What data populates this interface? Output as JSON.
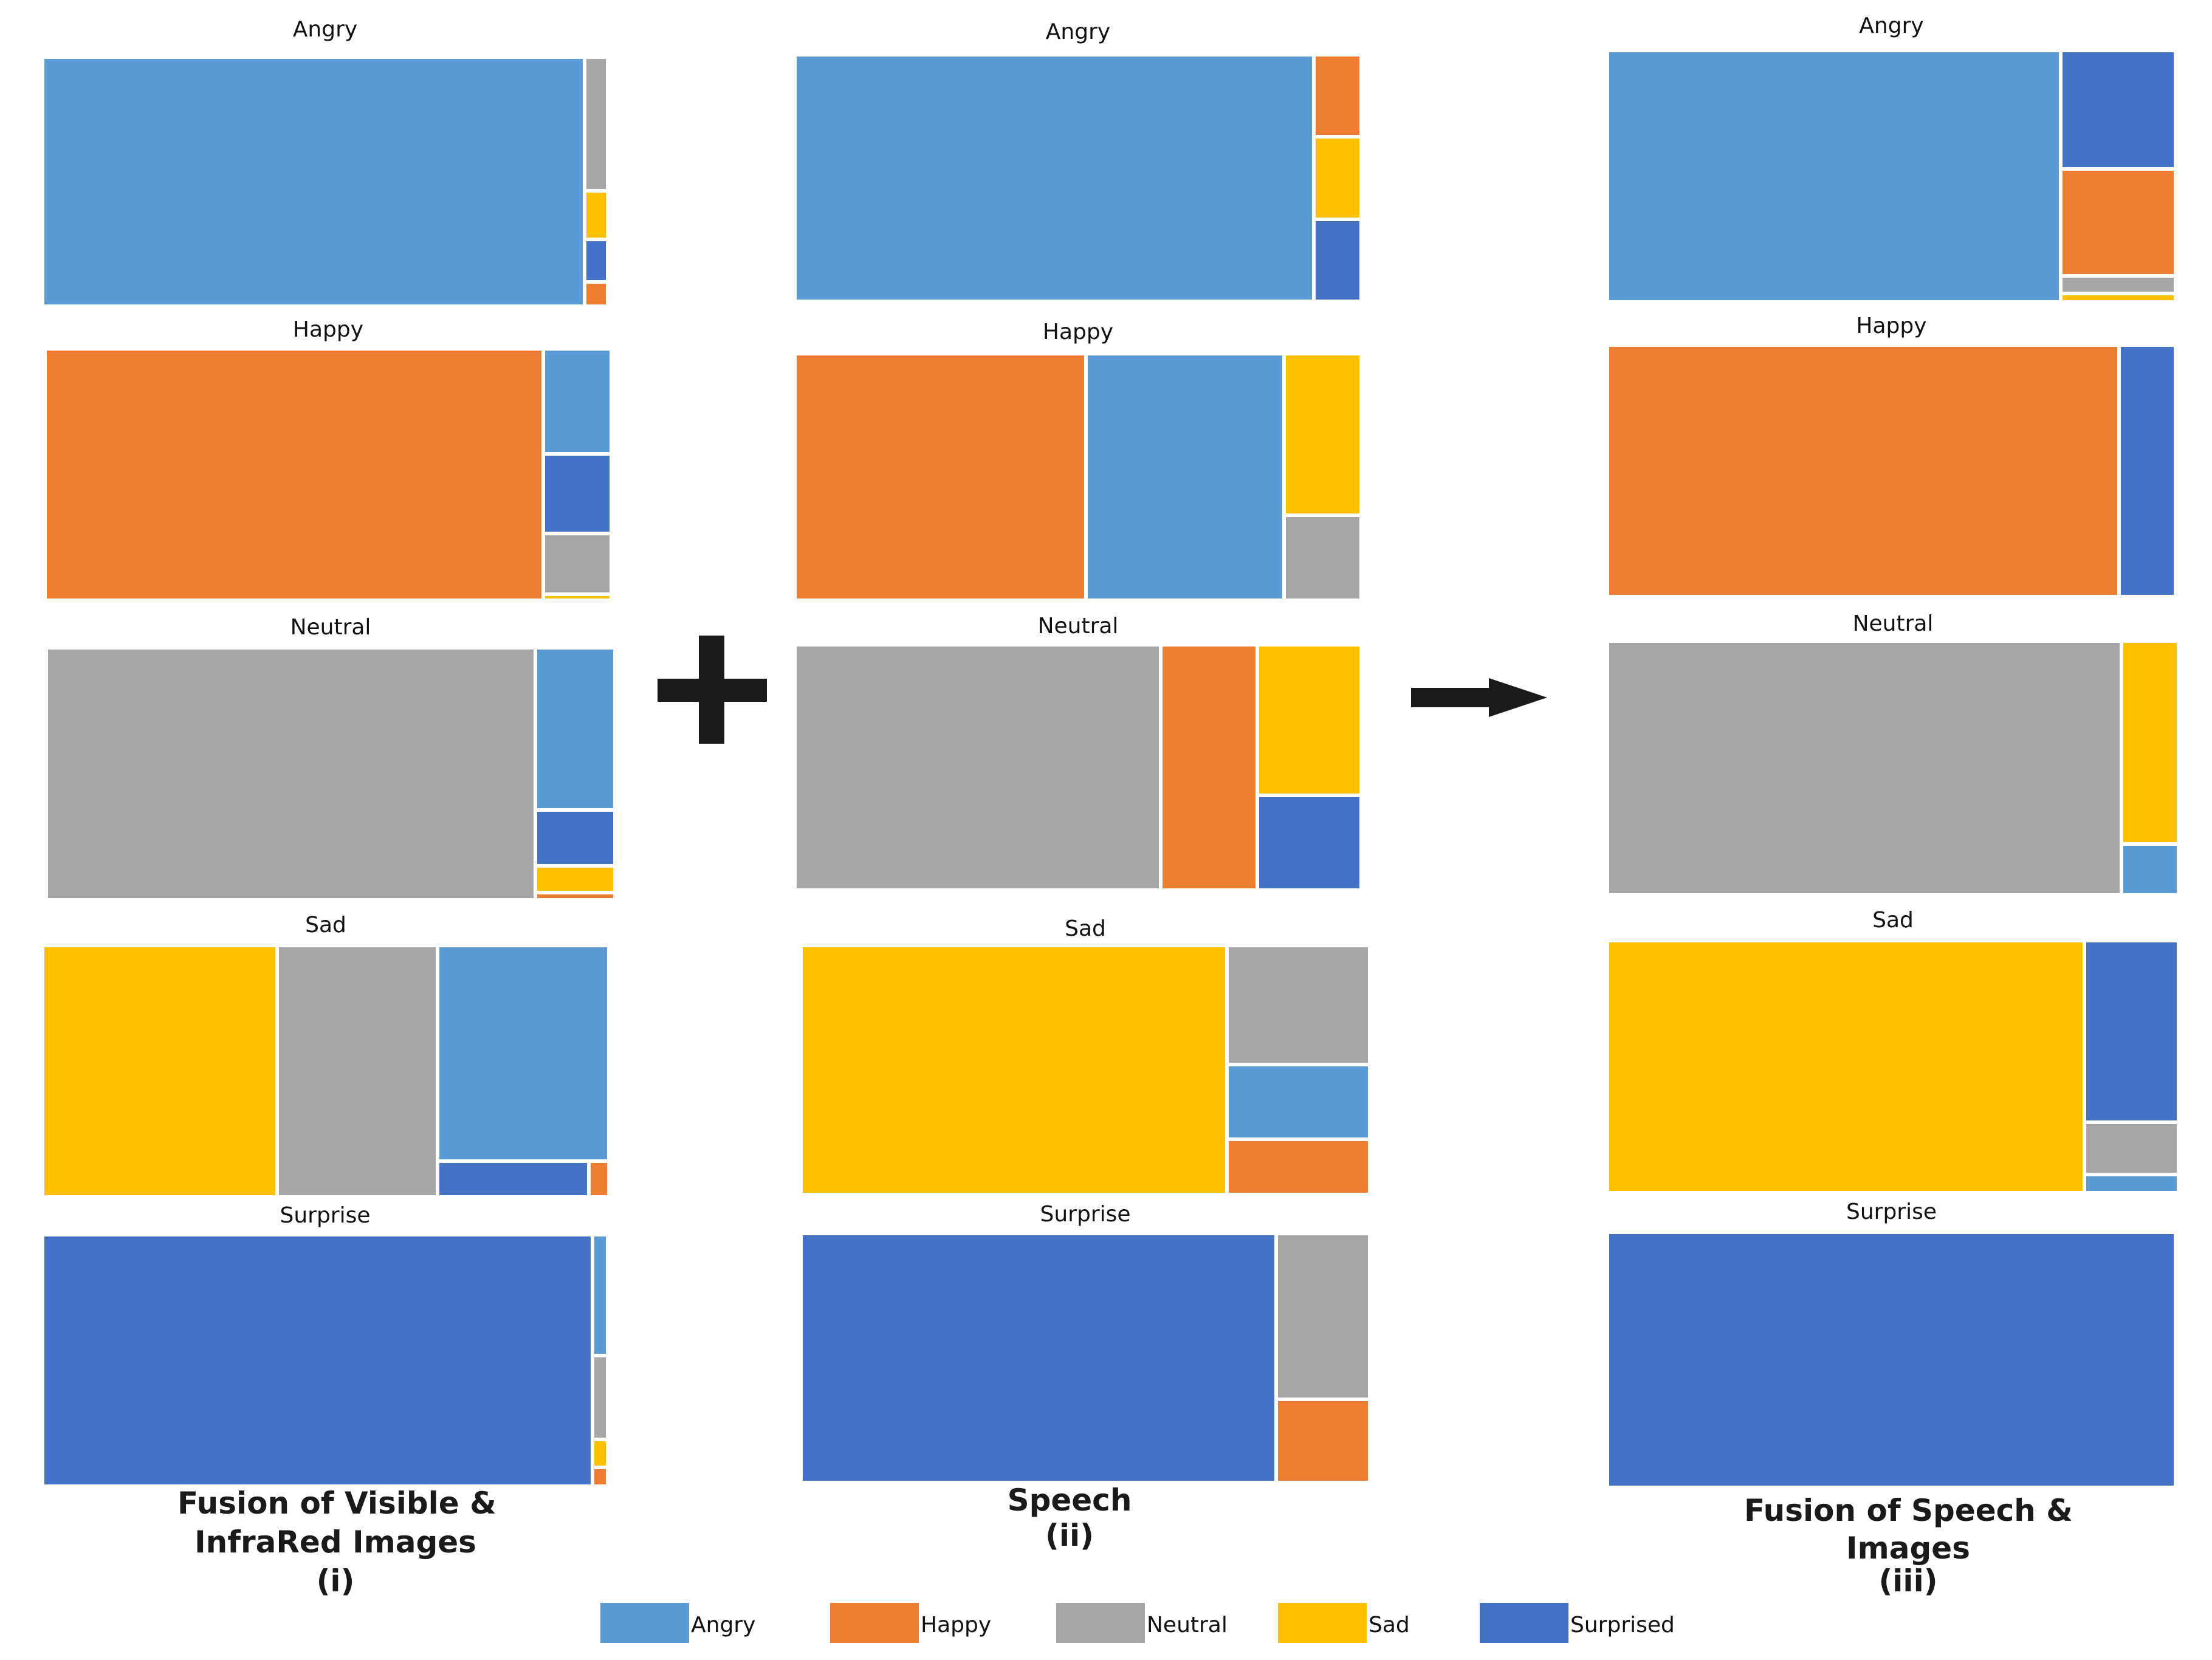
{
  "colors": {
    "Angry": "#5B9BD5",
    "Happy": "#ED7D31",
    "Neutral": "#A5A5A5",
    "Sad": "#FFC000",
    "Surprised": "#4472C4"
  },
  "legend": {
    "entries": [
      "Angry",
      "Happy",
      "Neutral",
      "Sad",
      "Surprised"
    ]
  },
  "captions": {
    "col1": [
      "Fusion of Visible &",
      "InfraRed Images",
      "(i)"
    ],
    "col2": [
      "Speech",
      "(ii)"
    ],
    "col3": [
      "Fusion of Speech &",
      "Images",
      "(iii)"
    ]
  },
  "symbols": {
    "plus": "plus-icon",
    "arrow": "arrow-right-icon"
  },
  "chart_data": [
    {
      "type": "treemap",
      "group": "Fusion of Visible & InfraRed Images (i)",
      "panels": [
        {
          "title": "Angry",
          "segments": [
            {
              "label": "Angry",
              "value": 95.9
            },
            {
              "label": "Neutral",
              "value": 2.2
            },
            {
              "label": "Sad",
              "value": 0.8
            },
            {
              "label": "Surprised",
              "value": 0.7
            },
            {
              "label": "Happy",
              "value": 0.4
            }
          ]
        },
        {
          "title": "Happy",
          "segments": [
            {
              "label": "Happy",
              "value": 88.0
            },
            {
              "label": "Angry",
              "value": 5.0
            },
            {
              "label": "Surprised",
              "value": 3.8
            },
            {
              "label": "Neutral",
              "value": 2.9
            },
            {
              "label": "Sad",
              "value": 0.3
            }
          ]
        },
        {
          "title": "Neutral",
          "segments": [
            {
              "label": "Neutral",
              "value": 86.0
            },
            {
              "label": "Angry",
              "value": 9.0
            },
            {
              "label": "Surprised",
              "value": 3.1
            },
            {
              "label": "Sad",
              "value": 1.5
            },
            {
              "label": "Happy",
              "value": 0.4
            }
          ]
        },
        {
          "title": "Sad",
          "segments": [
            {
              "label": "Sad",
              "value": 41.4
            },
            {
              "label": "Neutral",
              "value": 28.3
            },
            {
              "label": "Angry",
              "value": 26.0
            },
            {
              "label": "Surprised",
              "value": 3.8
            },
            {
              "label": "Happy",
              "value": 0.5
            }
          ]
        },
        {
          "title": "Surprise",
          "segments": [
            {
              "label": "Surprised",
              "value": 97.3
            },
            {
              "label": "Angry",
              "value": 1.3
            },
            {
              "label": "Neutral",
              "value": 0.9
            },
            {
              "label": "Sad",
              "value": 0.3
            },
            {
              "label": "Happy",
              "value": 0.2
            }
          ]
        }
      ]
    },
    {
      "type": "treemap",
      "group": "Speech (ii)",
      "panels": [
        {
          "title": "Angry",
          "segments": [
            {
              "label": "Angry",
              "value": 91.6
            },
            {
              "label": "Happy",
              "value": 2.8
            },
            {
              "label": "Sad",
              "value": 2.8
            },
            {
              "label": "Surprised",
              "value": 2.8
            }
          ]
        },
        {
          "title": "Happy",
          "segments": [
            {
              "label": "Happy",
              "value": 51.4
            },
            {
              "label": "Angry",
              "value": 35.0
            },
            {
              "label": "Sad",
              "value": 8.9
            },
            {
              "label": "Neutral",
              "value": 4.7
            }
          ]
        },
        {
          "title": "Neutral",
          "segments": [
            {
              "label": "Neutral",
              "value": 64.6
            },
            {
              "label": "Happy",
              "value": 17.0
            },
            {
              "label": "Sad",
              "value": 11.3
            },
            {
              "label": "Surprised",
              "value": 7.1
            }
          ]
        },
        {
          "title": "Sad",
          "segments": [
            {
              "label": "Sad",
              "value": 74.9
            },
            {
              "label": "Neutral",
              "value": 12.0
            },
            {
              "label": "Angry",
              "value": 7.5
            },
            {
              "label": "Happy",
              "value": 5.6
            }
          ]
        },
        {
          "title": "Surprise",
          "segments": [
            {
              "label": "Surprised",
              "value": 83.5
            },
            {
              "label": "Neutral",
              "value": 11.0
            },
            {
              "label": "Happy",
              "value": 5.5
            }
          ]
        }
      ]
    },
    {
      "type": "treemap",
      "group": "Fusion of Speech & Images (iii)",
      "panels": [
        {
          "title": "Angry",
          "segments": [
            {
              "label": "Angry",
              "value": 79.8
            },
            {
              "label": "Surprised",
              "value": 9.5
            },
            {
              "label": "Happy",
              "value": 8.6
            },
            {
              "label": "Neutral",
              "value": 1.4
            },
            {
              "label": "Sad",
              "value": 0.7
            }
          ]
        },
        {
          "title": "Happy",
          "segments": [
            {
              "label": "Happy",
              "value": 90.0
            },
            {
              "label": "Surprised",
              "value": 10.0
            }
          ]
        },
        {
          "title": "Neutral",
          "segments": [
            {
              "label": "Neutral",
              "value": 90.0
            },
            {
              "label": "Sad",
              "value": 8.0
            },
            {
              "label": "Angry",
              "value": 2.0
            }
          ]
        },
        {
          "title": "Sad",
          "segments": [
            {
              "label": "Sad",
              "value": 83.5
            },
            {
              "label": "Surprised",
              "value": 11.9
            },
            {
              "label": "Neutral",
              "value": 3.4
            },
            {
              "label": "Angry",
              "value": 1.2
            }
          ]
        },
        {
          "title": "Surprise",
          "segments": [
            {
              "label": "Surprised",
              "value": 100.0
            }
          ]
        }
      ]
    }
  ]
}
